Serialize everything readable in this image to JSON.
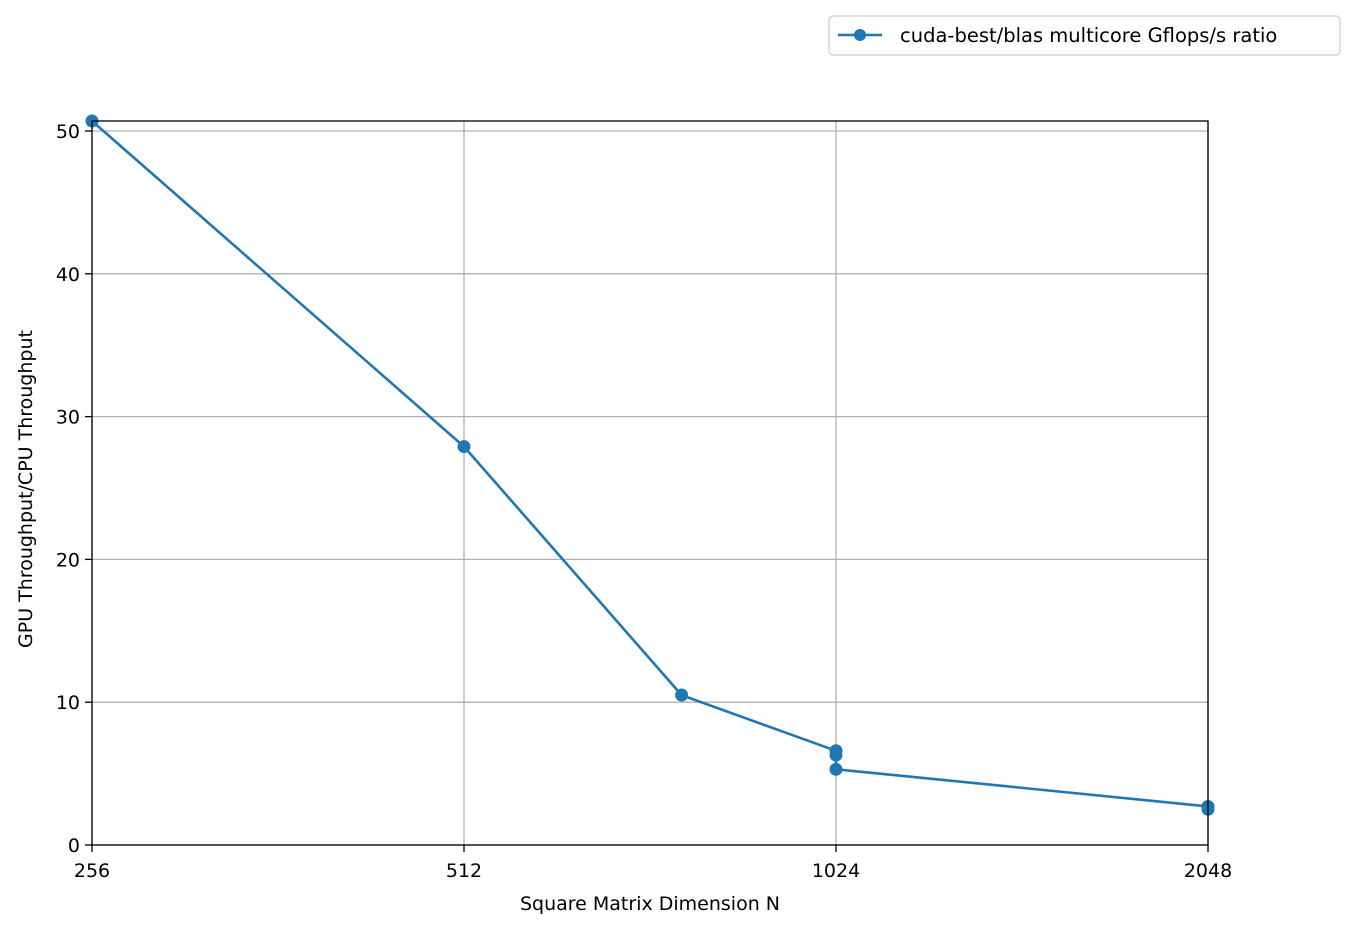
{
  "chart_data": {
    "type": "line",
    "title": "",
    "xlabel": "Square Matrix Dimension N",
    "ylabel": "GPU Throughput/CPU Throughput",
    "x_scale": "log2",
    "xlim": [
      256,
      2048
    ],
    "ylim": [
      0,
      50.7
    ],
    "x_ticks": [
      256,
      512,
      1024,
      2048
    ],
    "x_tick_labels": [
      "256",
      "512",
      "1024",
      "2048"
    ],
    "y_ticks": [
      0,
      10,
      20,
      30,
      40,
      50
    ],
    "y_tick_labels": [
      "0",
      "10",
      "20",
      "30",
      "40",
      "50"
    ],
    "grid": true,
    "legend_position": "above-right",
    "series": [
      {
        "name": "cuda-best/blas multicore Gflops/s ratio",
        "color": "#1f77b4",
        "marker": "circle",
        "points": [
          {
            "x": 256,
            "y": 50.7
          },
          {
            "x": 512,
            "y": 27.9
          },
          {
            "x": 768,
            "y": 10.5
          },
          {
            "x": 1024,
            "y": 6.6
          },
          {
            "x": 1024,
            "y": 6.3
          },
          {
            "x": 1024,
            "y": 5.3
          },
          {
            "x": 2048,
            "y": 2.7
          },
          {
            "x": 2048,
            "y": 2.5
          }
        ]
      }
    ]
  }
}
